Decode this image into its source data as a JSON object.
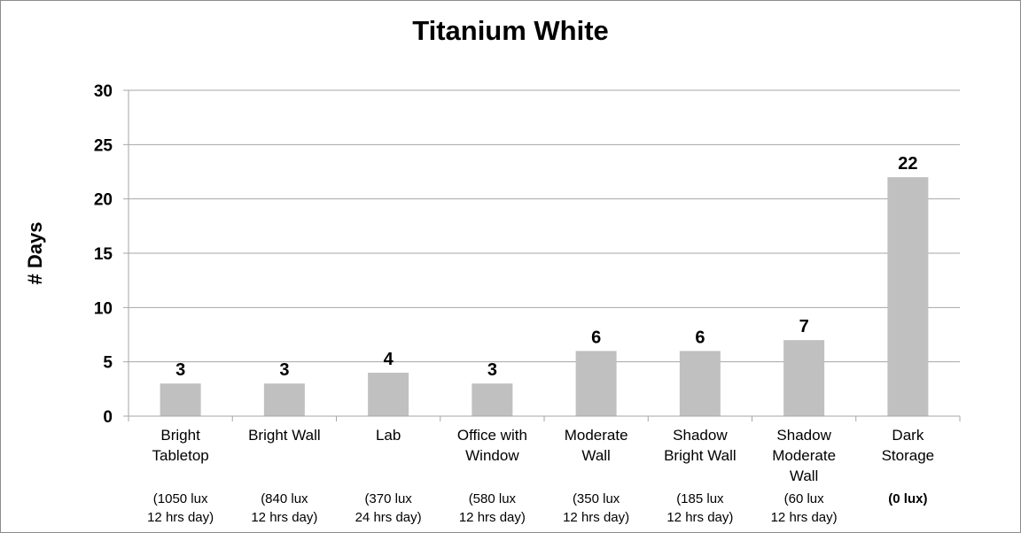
{
  "chart_data": {
    "type": "bar",
    "title": "Titanium White",
    "xlabel": "",
    "ylabel": "# Days",
    "ylim": [
      0,
      30
    ],
    "yticks": [
      0,
      5,
      10,
      15,
      20,
      25,
      30
    ],
    "grid": true,
    "legend": "none",
    "bar_color": "#c0c0c0",
    "categories": [
      {
        "lines": [
          "Bright",
          "Tabletop"
        ],
        "sub": [
          "(1050 lux",
          "12 hrs day)"
        ],
        "sub_bold": false
      },
      {
        "lines": [
          "Bright Wall"
        ],
        "sub": [
          "(840 lux",
          "12 hrs day)"
        ],
        "sub_bold": false
      },
      {
        "lines": [
          "Lab"
        ],
        "sub": [
          "(370 lux",
          "24 hrs day)"
        ],
        "sub_bold": false
      },
      {
        "lines": [
          "Office with",
          "Window"
        ],
        "sub": [
          "(580 lux",
          "12 hrs day)"
        ],
        "sub_bold": false
      },
      {
        "lines": [
          "Moderate",
          "Wall"
        ],
        "sub": [
          "(350 lux",
          "12 hrs day)"
        ],
        "sub_bold": false
      },
      {
        "lines": [
          "Shadow",
          "Bright Wall"
        ],
        "sub": [
          "(185 lux",
          "12 hrs day)"
        ],
        "sub_bold": false
      },
      {
        "lines": [
          "Shadow",
          "Moderate",
          "Wall"
        ],
        "sub": [
          "(60 lux",
          "12 hrs day)"
        ],
        "sub_bold": false
      },
      {
        "lines": [
          "Dark",
          "Storage"
        ],
        "sub": [
          "(0 lux)"
        ],
        "sub_bold": true
      }
    ],
    "values": [
      3,
      3,
      4,
      3,
      6,
      6,
      7,
      22
    ]
  }
}
